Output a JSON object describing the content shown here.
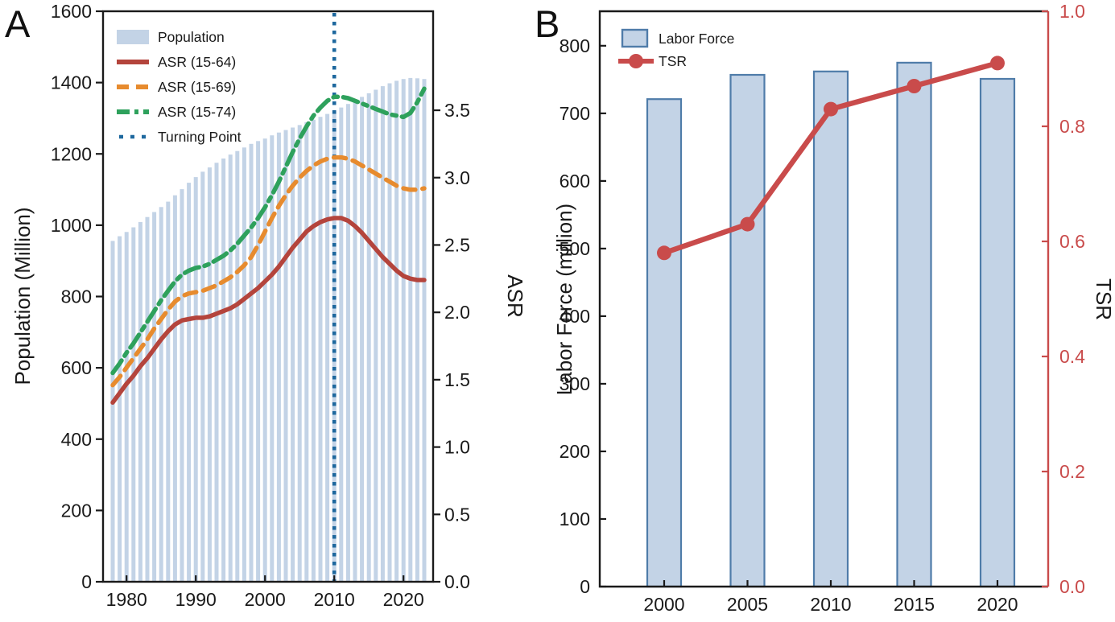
{
  "figure": {
    "panel_a_label": "A",
    "panel_b_label": "B"
  },
  "chart_data": [
    {
      "id": "panel_a",
      "type": "bar",
      "x": [
        1978,
        1979,
        1980,
        1981,
        1982,
        1983,
        1984,
        1985,
        1986,
        1987,
        1988,
        1989,
        1990,
        1991,
        1992,
        1993,
        1994,
        1995,
        1996,
        1997,
        1998,
        1999,
        2000,
        2001,
        2002,
        2003,
        2004,
        2005,
        2006,
        2007,
        2008,
        2009,
        2010,
        2011,
        2012,
        2013,
        2014,
        2015,
        2016,
        2017,
        2018,
        2019,
        2020,
        2021,
        2022,
        2023
      ],
      "series": [
        {
          "name": "Population",
          "type": "bar",
          "axis": "left",
          "color": "#c3d3e6",
          "values": [
            956,
            969,
            981,
            994,
            1009,
            1023,
            1037,
            1051,
            1066,
            1084,
            1101,
            1119,
            1135,
            1150,
            1162,
            1175,
            1187,
            1198,
            1208,
            1218,
            1228,
            1236,
            1243,
            1252,
            1260,
            1267,
            1274,
            1281,
            1289,
            1296,
            1304,
            1312,
            1321,
            1330,
            1340,
            1350,
            1360,
            1370,
            1380,
            1390,
            1398,
            1405,
            1410,
            1413,
            1412,
            1410
          ]
        },
        {
          "name": "ASR (15-64)",
          "type": "line",
          "style": "solid",
          "axis": "right",
          "color": "#b4443c",
          "values": [
            1.33,
            1.4,
            1.47,
            1.53,
            1.6,
            1.66,
            1.73,
            1.8,
            1.86,
            1.91,
            1.94,
            1.95,
            1.96,
            1.96,
            1.97,
            1.99,
            2.01,
            2.03,
            2.06,
            2.1,
            2.14,
            2.18,
            2.23,
            2.28,
            2.34,
            2.41,
            2.48,
            2.54,
            2.6,
            2.64,
            2.67,
            2.69,
            2.7,
            2.7,
            2.68,
            2.64,
            2.59,
            2.53,
            2.47,
            2.41,
            2.36,
            2.31,
            2.27,
            2.25,
            2.24,
            2.24
          ]
        },
        {
          "name": "ASR (15-69)",
          "type": "line",
          "style": "dashed",
          "axis": "right",
          "color": "#e78b2e",
          "values": [
            1.46,
            1.52,
            1.59,
            1.66,
            1.73,
            1.8,
            1.88,
            1.95,
            2.02,
            2.08,
            2.12,
            2.14,
            2.15,
            2.16,
            2.18,
            2.2,
            2.23,
            2.26,
            2.3,
            2.35,
            2.41,
            2.5,
            2.6,
            2.7,
            2.79,
            2.87,
            2.94,
            3.0,
            3.05,
            3.09,
            3.12,
            3.14,
            3.15,
            3.15,
            3.14,
            3.12,
            3.09,
            3.06,
            3.03,
            3.0,
            2.97,
            2.94,
            2.92,
            2.91,
            2.91,
            2.92
          ]
        },
        {
          "name": "ASR (15-74)",
          "type": "line",
          "style": "dashdot",
          "axis": "right",
          "color": "#2ea15c",
          "values": [
            1.55,
            1.62,
            1.7,
            1.77,
            1.85,
            1.93,
            2.01,
            2.09,
            2.16,
            2.23,
            2.28,
            2.31,
            2.33,
            2.34,
            2.36,
            2.39,
            2.42,
            2.46,
            2.51,
            2.57,
            2.63,
            2.7,
            2.78,
            2.87,
            2.97,
            3.08,
            3.19,
            3.29,
            3.38,
            3.46,
            3.52,
            3.57,
            3.6,
            3.6,
            3.59,
            3.57,
            3.55,
            3.53,
            3.51,
            3.49,
            3.47,
            3.46,
            3.45,
            3.48,
            3.56,
            3.66
          ]
        }
      ],
      "turning_point": {
        "label": "Turning Point",
        "x": 2010,
        "color": "#1e689e"
      },
      "legend": [
        "Population",
        "ASR (15-64)",
        "ASR (15-69)",
        "ASR (15-74)",
        "Turning Point"
      ],
      "axes": {
        "left": {
          "label": "Population (Million)",
          "ticks": [
            0,
            200,
            400,
            600,
            800,
            1000,
            1200,
            1400,
            1600
          ],
          "min": 0,
          "max": 1600,
          "decimals": 0
        },
        "right": {
          "label": "ASR",
          "ticks": [
            0.0,
            0.5,
            1.0,
            1.5,
            2.0,
            2.5,
            3.0,
            3.5
          ],
          "min": 0,
          "max": 4.235,
          "decimals": 1
        },
        "bottom": {
          "ticks": [
            1980,
            1990,
            2000,
            2010,
            2020
          ]
        }
      }
    },
    {
      "id": "panel_b",
      "type": "bar",
      "x": [
        2000,
        2005,
        2010,
        2015,
        2020
      ],
      "series": [
        {
          "name": "Labor Force",
          "type": "bar",
          "axis": "left",
          "color": "#c3d3e6",
          "edge": "#4f7ca9",
          "values": [
            721,
            757,
            762,
            775,
            751
          ]
        },
        {
          "name": "TSR",
          "type": "line",
          "style": "solid",
          "marker": "circle",
          "axis": "right",
          "color": "#c94b4b",
          "values": [
            0.58,
            0.63,
            0.83,
            0.87,
            0.91
          ]
        }
      ],
      "legend": [
        "Labor Force",
        "TSR"
      ],
      "axes": {
        "left": {
          "label": "Labor Force (million)",
          "ticks": [
            0,
            100,
            200,
            300,
            400,
            500,
            600,
            700,
            800
          ],
          "min": 0,
          "max": 851,
          "decimals": 0
        },
        "right": {
          "label": "TSR",
          "ticks": [
            0.0,
            0.2,
            0.4,
            0.6,
            0.8,
            1.0
          ],
          "min": 0,
          "max": 1.0,
          "decimals": 1,
          "color": "#c94b4b"
        },
        "bottom": {
          "ticks": [
            2000,
            2005,
            2010,
            2015,
            2020
          ]
        }
      }
    }
  ]
}
